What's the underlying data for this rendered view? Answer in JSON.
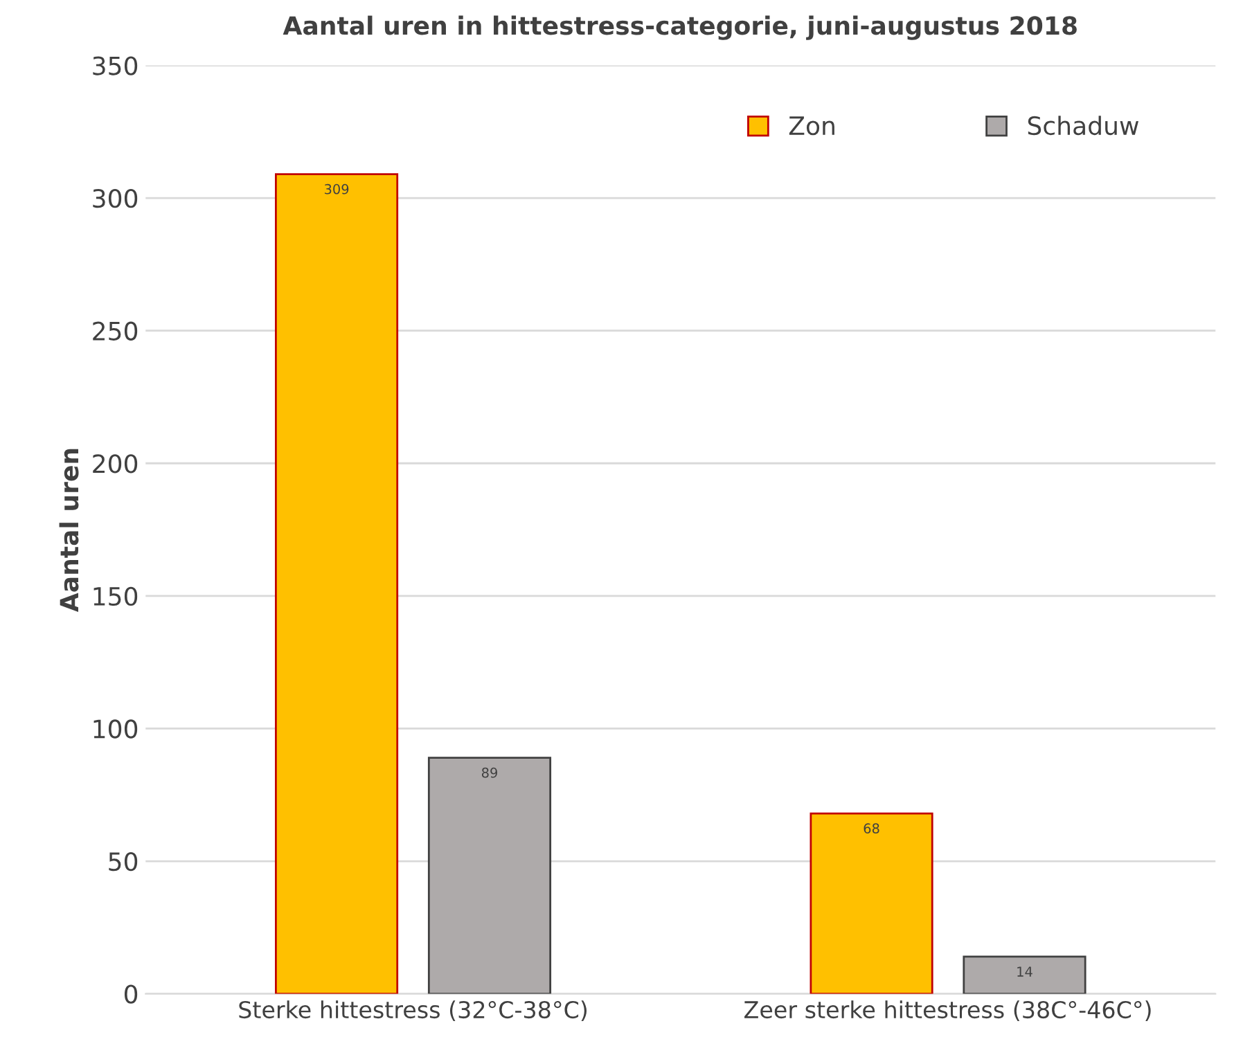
{
  "chart_data": {
    "type": "bar",
    "title": "Aantal uren in hittestress-categorie, juni-augustus 2018",
    "ylabel": "Aantal uren",
    "categories": [
      "Sterke hittestress (32°C-38°C)",
      "Zeer sterke hittestress (38C°-46C°)"
    ],
    "series": [
      {
        "name": "Zon",
        "color": "#ffc000",
        "values": [
          309,
          68
        ]
      },
      {
        "name": "Schaduw",
        "color": "#aeaaaa",
        "values": [
          89,
          14
        ]
      }
    ],
    "ylim": [
      0,
      350
    ],
    "yticks": [
      0,
      50,
      100,
      150,
      200,
      250,
      300,
      350
    ],
    "grid": "y",
    "legend": "top right",
    "data_labels": true
  }
}
